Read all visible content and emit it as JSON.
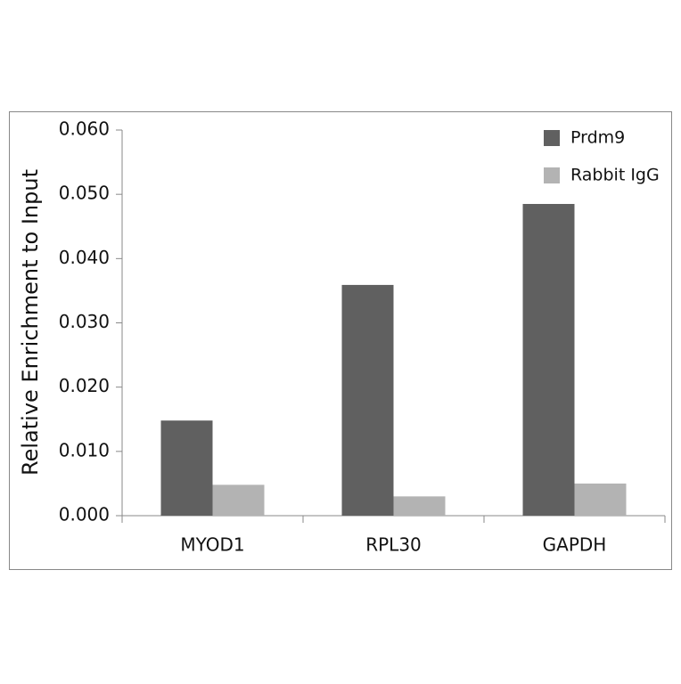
{
  "chart_data": {
    "type": "bar",
    "y_label": "Relative Enrichment to Input",
    "categories": [
      "MYOD1",
      "RPL30",
      "GAPDH"
    ],
    "series": [
      {
        "name": "Prdm9",
        "color": "#606060",
        "values": [
          0.0148,
          0.0359,
          0.0485
        ]
      },
      {
        "name": "Rabbit IgG",
        "color": "#b3b3b3",
        "values": [
          0.0048,
          0.003,
          0.005
        ]
      }
    ],
    "ylim": [
      0,
      0.06
    ],
    "yticks": [
      {
        "value": 0,
        "label": "0.000"
      },
      {
        "value": 0.01,
        "label": "0.010"
      },
      {
        "value": 0.02,
        "label": "0.020"
      },
      {
        "value": 0.03,
        "label": "0.030"
      },
      {
        "value": 0.04,
        "label": "0.040"
      },
      {
        "value": 0.05,
        "label": "0.050"
      },
      {
        "value": 0.06,
        "label": "0.060"
      }
    ],
    "legend": "top-right"
  }
}
